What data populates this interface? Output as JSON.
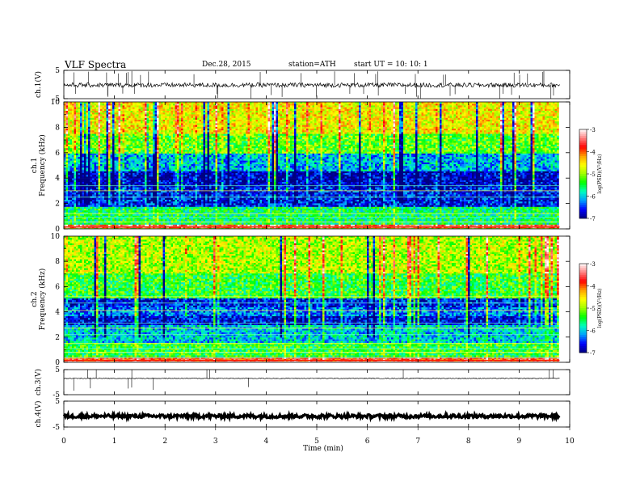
{
  "header": {
    "title": "VLF  Spectra",
    "date": "Dec.28, 2015",
    "station": "station=ATH",
    "start": "start  UT  =    10: 10: 1"
  },
  "chart_data": [
    {
      "type": "line",
      "name": "ch1-waveform",
      "ylabel": "ch.1(V)",
      "ylim": [
        -5,
        5
      ],
      "yticks": [
        "5",
        "-5"
      ],
      "x_range": [
        0,
        9.8
      ],
      "baseline_v": -0.2,
      "noise_amp_v": 0.8,
      "spike_count": 48
    },
    {
      "type": "heatmap",
      "name": "ch1-spectrogram",
      "ylabel": "ch.1\nFrequency  (kHz)",
      "xlim": [
        0,
        10
      ],
      "ylim": [
        0,
        10
      ],
      "yticks": [
        "0",
        "2",
        "4",
        "6",
        "8",
        "10"
      ],
      "data_extent_min": 9.8,
      "colorbar": {
        "label": "log(PSD)(V²/Hz)",
        "ticks": [
          "-3",
          "-4",
          "-5",
          "-6",
          "-7"
        ],
        "range": [
          -7,
          -3
        ],
        "colors": [
          "#000080",
          "#0000ff",
          "#00a0ff",
          "#00ffc0",
          "#00ff00",
          "#a0ff00",
          "#ffff00",
          "#ffa000",
          "#ff0000",
          "#ff8080",
          "#ffffff"
        ]
      },
      "bands": [
        {
          "f": [
            0,
            0.4
          ],
          "level": -3.6
        },
        {
          "f": [
            0.4,
            1.8
          ],
          "level": -5.6
        },
        {
          "f": [
            1.8,
            3.3
          ],
          "level": -6.6
        },
        {
          "f": [
            3.3,
            4.6
          ],
          "level": -6.8
        },
        {
          "f": [
            4.6,
            6.0
          ],
          "level": -6.1
        },
        {
          "f": [
            6.0,
            7.5
          ],
          "level": -5.2
        },
        {
          "f": [
            7.5,
            10
          ],
          "level": -4.6
        }
      ],
      "lines_khz": [
        0.2,
        0.55,
        0.9,
        1.2,
        2.5,
        3.0,
        3.4
      ]
    },
    {
      "type": "heatmap",
      "name": "ch2-spectrogram",
      "ylabel": "ch.2\nFrequency  (kHz)",
      "xlim": [
        0,
        10
      ],
      "ylim": [
        0,
        10
      ],
      "yticks": [
        "0",
        "2",
        "4",
        "6",
        "8",
        "10"
      ],
      "data_extent_min": 9.8,
      "colorbar": {
        "label": "log(PSD)(V²/Hz)",
        "ticks": [
          "-3",
          "-4",
          "-5",
          "-6",
          "-7"
        ],
        "range": [
          -7,
          -3
        ]
      },
      "bands": [
        {
          "f": [
            0,
            0.4
          ],
          "level": -3.8
        },
        {
          "f": [
            0.4,
            1.5
          ],
          "level": -5.4
        },
        {
          "f": [
            1.5,
            3.0
          ],
          "level": -6.0
        },
        {
          "f": [
            3.0,
            3.6
          ],
          "level": -6.7
        },
        {
          "f": [
            3.6,
            4.4
          ],
          "level": -6.3
        },
        {
          "f": [
            4.4,
            5.0
          ],
          "level": -6.6
        },
        {
          "f": [
            5.0,
            7.0
          ],
          "level": -5.4
        },
        {
          "f": [
            7.0,
            10
          ],
          "level": -4.9
        }
      ],
      "lines_khz": [
        0.35,
        0.8,
        1.1,
        1.5,
        2.2,
        2.7,
        3.1,
        4.1,
        4.7,
        5.2
      ]
    },
    {
      "type": "line",
      "name": "ch3-waveform",
      "ylabel": "ch.3(V)",
      "ylim": [
        -5,
        5
      ],
      "yticks": [
        "5",
        "-5"
      ],
      "x_range": [
        0,
        9.8
      ],
      "baseline_v": 1.5,
      "noise_amp_v": 0.15,
      "spike_count": 14
    },
    {
      "type": "line",
      "name": "ch4-waveform",
      "ylabel": "ch.4(V)",
      "ylim": [
        -5,
        5
      ],
      "yticks": [
        "5",
        "-5"
      ],
      "x_range": [
        0,
        9.8
      ],
      "baseline_v": -0.8,
      "noise_amp_v": 0.7,
      "spike_count": 0
    }
  ],
  "x_axis": {
    "label": "Time  (min)",
    "ticks": [
      "0",
      "1",
      "2",
      "3",
      "4",
      "5",
      "6",
      "7",
      "8",
      "9",
      "10"
    ],
    "range": [
      0,
      10
    ]
  }
}
